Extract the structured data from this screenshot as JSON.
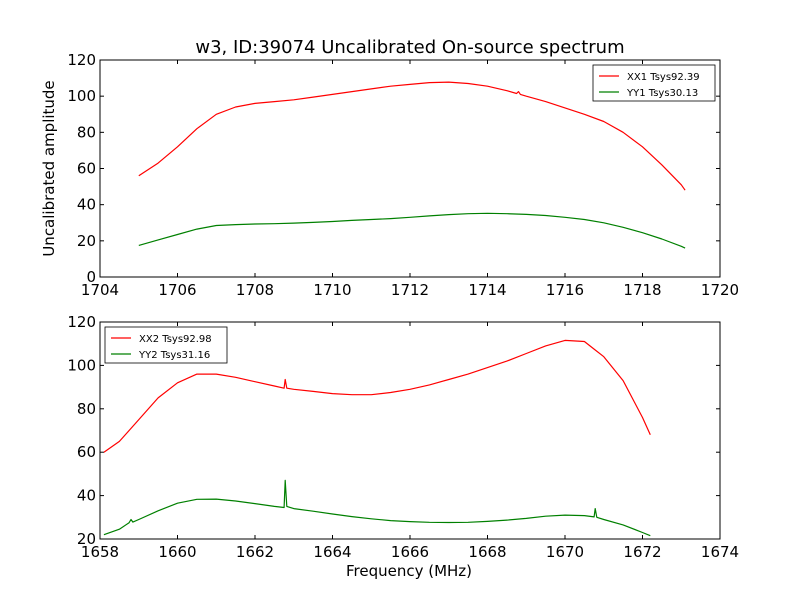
{
  "figure": {
    "title": "w3, ID:39074 Uncalibrated On-source spectrum"
  },
  "chart_data": [
    {
      "type": "line",
      "title": "w3, ID:39074 Uncalibrated On-source spectrum",
      "xlabel": "",
      "ylabel": "Uncalibrated amplitude",
      "xlim": [
        1704,
        1720
      ],
      "ylim": [
        0,
        120
      ],
      "xticks": [
        "1704",
        "1706",
        "1708",
        "1710",
        "1712",
        "1714",
        "1716",
        "1718",
        "1720"
      ],
      "yticks": [
        "0",
        "20",
        "40",
        "60",
        "80",
        "100",
        "120"
      ],
      "legend_position": "top-right",
      "series": [
        {
          "name": "XX1 Tsys92.39",
          "color": "#ff0000",
          "points": [
            [
              1705.0,
              56
            ],
            [
              1705.5,
              63
            ],
            [
              1706.0,
              72
            ],
            [
              1706.5,
              82
            ],
            [
              1707.0,
              90
            ],
            [
              1707.5,
              94
            ],
            [
              1708.0,
              96
            ],
            [
              1708.5,
              97
            ],
            [
              1709.0,
              98
            ],
            [
              1709.5,
              99.5
            ],
            [
              1710.0,
              101
            ],
            [
              1710.5,
              102.5
            ],
            [
              1711.0,
              104
            ],
            [
              1711.5,
              105.5
            ],
            [
              1712.0,
              106.5
            ],
            [
              1712.5,
              107.5
            ],
            [
              1713.0,
              107.8
            ],
            [
              1713.5,
              107
            ],
            [
              1714.0,
              105.5
            ],
            [
              1714.5,
              103
            ],
            [
              1714.75,
              101.5
            ],
            [
              1714.8,
              102.5
            ],
            [
              1714.85,
              101
            ],
            [
              1715.0,
              100
            ],
            [
              1715.5,
              97
            ],
            [
              1716.0,
              93.5
            ],
            [
              1716.5,
              90
            ],
            [
              1717.0,
              86
            ],
            [
              1717.5,
              80
            ],
            [
              1718.0,
              72
            ],
            [
              1718.5,
              62
            ],
            [
              1719.0,
              51
            ],
            [
              1719.1,
              48
            ]
          ]
        },
        {
          "name": "YY1 Tsys30.13",
          "color": "#008000",
          "points": [
            [
              1705.0,
              17.5
            ],
            [
              1705.5,
              20.5
            ],
            [
              1706.0,
              23.5
            ],
            [
              1706.5,
              26.5
            ],
            [
              1707.0,
              28.5
            ],
            [
              1707.5,
              29
            ],
            [
              1708.0,
              29.3
            ],
            [
              1708.5,
              29.5
            ],
            [
              1709.0,
              29.8
            ],
            [
              1709.5,
              30.2
            ],
            [
              1710.0,
              30.7
            ],
            [
              1710.5,
              31.3
            ],
            [
              1711.0,
              31.8
            ],
            [
              1711.5,
              32.3
            ],
            [
              1712.0,
              33
            ],
            [
              1712.5,
              33.8
            ],
            [
              1713.0,
              34.5
            ],
            [
              1713.5,
              35
            ],
            [
              1714.0,
              35.2
            ],
            [
              1714.5,
              35
            ],
            [
              1715.0,
              34.6
            ],
            [
              1715.5,
              34
            ],
            [
              1716.0,
              33
            ],
            [
              1716.5,
              31.8
            ],
            [
              1717.0,
              30
            ],
            [
              1717.5,
              27.5
            ],
            [
              1718.0,
              24.5
            ],
            [
              1718.5,
              21
            ],
            [
              1719.0,
              17
            ],
            [
              1719.1,
              16
            ]
          ]
        }
      ]
    },
    {
      "type": "line",
      "title": "",
      "xlabel": "Frequency (MHz)",
      "ylabel": "",
      "xlim": [
        1658,
        1674
      ],
      "ylim": [
        20,
        120
      ],
      "xticks": [
        "1658",
        "1660",
        "1662",
        "1664",
        "1666",
        "1668",
        "1670",
        "1672",
        "1674"
      ],
      "yticks": [
        "20",
        "40",
        "60",
        "80",
        "100",
        "120"
      ],
      "legend_position": "top-left",
      "series": [
        {
          "name": "XX2 Tsys92.98",
          "color": "#ff0000",
          "points": [
            [
              1658.1,
              60
            ],
            [
              1658.5,
              65
            ],
            [
              1659.0,
              75
            ],
            [
              1659.5,
              85
            ],
            [
              1660.0,
              92
            ],
            [
              1660.5,
              96
            ],
            [
              1661.0,
              96
            ],
            [
              1661.5,
              94.5
            ],
            [
              1662.0,
              92.5
            ],
            [
              1662.5,
              90.5
            ],
            [
              1662.75,
              89.5
            ],
            [
              1662.78,
              93.5
            ],
            [
              1662.82,
              89.5
            ],
            [
              1663.0,
              89
            ],
            [
              1663.5,
              88
            ],
            [
              1664.0,
              87
            ],
            [
              1664.5,
              86.5
            ],
            [
              1665.0,
              86.5
            ],
            [
              1665.5,
              87.5
            ],
            [
              1666.0,
              89
            ],
            [
              1666.5,
              91
            ],
            [
              1667.0,
              93.5
            ],
            [
              1667.5,
              96
            ],
            [
              1668.0,
              99
            ],
            [
              1668.5,
              102
            ],
            [
              1669.0,
              105.5
            ],
            [
              1669.5,
              109
            ],
            [
              1670.0,
              111.5
            ],
            [
              1670.5,
              111
            ],
            [
              1670.75,
              107.5
            ],
            [
              1671.0,
              104
            ],
            [
              1671.5,
              93
            ],
            [
              1672.0,
              76
            ],
            [
              1672.2,
              68
            ]
          ]
        },
        {
          "name": "YY2 Tsys31.16",
          "color": "#008000",
          "points": [
            [
              1658.1,
              22
            ],
            [
              1658.5,
              24.5
            ],
            [
              1658.75,
              27.5
            ],
            [
              1658.8,
              29
            ],
            [
              1658.85,
              27.8
            ],
            [
              1659.0,
              29
            ],
            [
              1659.5,
              33
            ],
            [
              1660.0,
              36.5
            ],
            [
              1660.5,
              38.3
            ],
            [
              1661.0,
              38.4
            ],
            [
              1661.5,
              37.5
            ],
            [
              1662.0,
              36.3
            ],
            [
              1662.5,
              35
            ],
            [
              1662.75,
              34.5
            ],
            [
              1662.78,
              47
            ],
            [
              1662.82,
              35
            ],
            [
              1663.0,
              34
            ],
            [
              1663.5,
              32.8
            ],
            [
              1664.0,
              31.5
            ],
            [
              1664.5,
              30.3
            ],
            [
              1665.0,
              29.3
            ],
            [
              1665.5,
              28.5
            ],
            [
              1666.0,
              28
            ],
            [
              1666.5,
              27.7
            ],
            [
              1667.0,
              27.6
            ],
            [
              1667.5,
              27.7
            ],
            [
              1668.0,
              28.1
            ],
            [
              1668.5,
              28.7
            ],
            [
              1669.0,
              29.5
            ],
            [
              1669.5,
              30.5
            ],
            [
              1670.0,
              31
            ],
            [
              1670.5,
              30.8
            ],
            [
              1670.75,
              30.2
            ],
            [
              1670.78,
              34
            ],
            [
              1670.82,
              30
            ],
            [
              1671.0,
              29
            ],
            [
              1671.5,
              26.5
            ],
            [
              1672.0,
              23
            ],
            [
              1672.2,
              21.5
            ]
          ]
        }
      ]
    }
  ]
}
